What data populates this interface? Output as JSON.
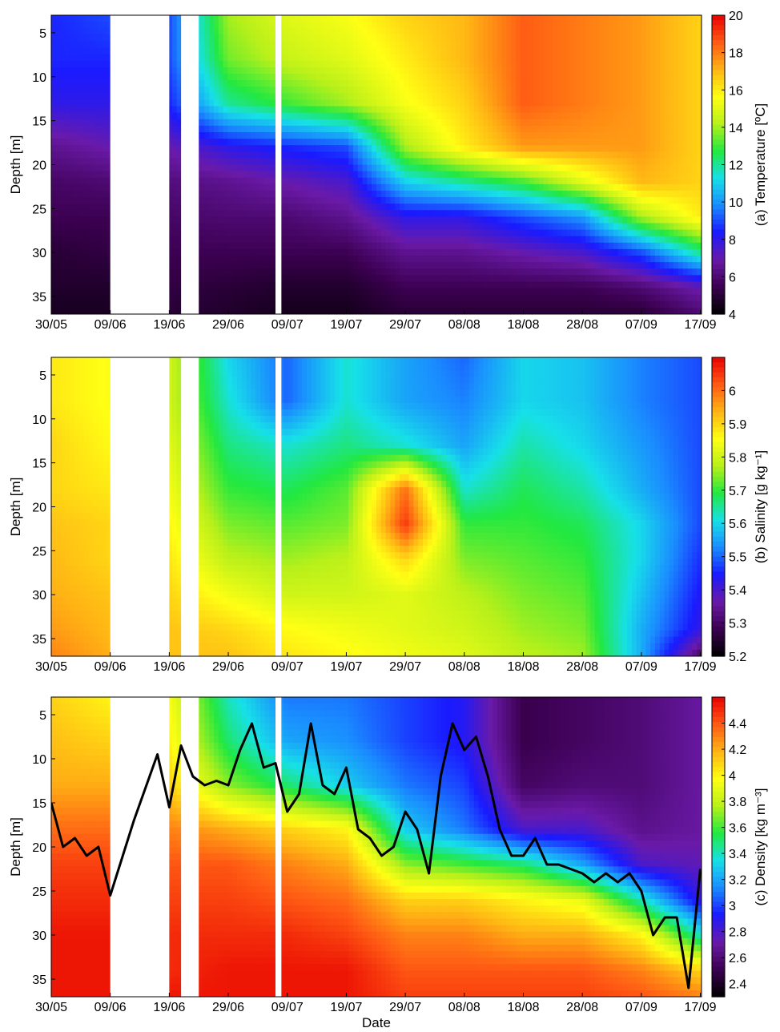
{
  "figure": {
    "xlabel": "Date"
  },
  "chart_data": [
    {
      "type": "heatmap",
      "variable": "temperature",
      "ylabel": "Depth [m]",
      "xlabel": "",
      "colorbar_label": "(a) Temperature [ºC]",
      "colorbar_ticks": [
        "4",
        "6",
        "8",
        "10",
        "12",
        "14",
        "16",
        "18",
        "20"
      ],
      "clim": [
        4,
        20
      ],
      "colormap": [
        "#000000",
        "#3b0050",
        "#6a1aa8",
        "#1a1aff",
        "#1a8cff",
        "#17e0e8",
        "#22e840",
        "#b8f01a",
        "#ffff14",
        "#ffb414",
        "#ff5a14",
        "#e80000"
      ],
      "x_ticks": [
        "30/05",
        "09/06",
        "19/06",
        "29/06",
        "09/07",
        "19/07",
        "29/07",
        "08/08",
        "18/08",
        "28/08",
        "07/09",
        "17/09"
      ],
      "y_ticks": [
        "5",
        "10",
        "15",
        "20",
        "25",
        "30",
        "35"
      ],
      "ylim": [
        3,
        37
      ],
      "y_reversed": true,
      "profile_depths": [
        3,
        8,
        13,
        18,
        22,
        26,
        30,
        34,
        37
      ],
      "profile_dates": [
        "30/05",
        "09/06",
        "19/06",
        "29/06",
        "09/07",
        "19/07",
        "29/07",
        "08/08",
        "18/08",
        "28/08",
        "07/09",
        "17/09"
      ],
      "profiles": [
        [
          8.5,
          8.5,
          8.0,
          6.5,
          5.8,
          5.5,
          5.0,
          4.8,
          4.6
        ],
        [
          9.0,
          8.5,
          8.0,
          7.0,
          6.0,
          5.5,
          5.2,
          4.8,
          4.6
        ],
        [
          9.0,
          9.0,
          8.5,
          7.0,
          6.2,
          5.8,
          5.5,
          5.2,
          5.0
        ],
        [
          14.0,
          13.5,
          12.0,
          8.0,
          6.5,
          6.0,
          5.5,
          5.0,
          4.8
        ],
        [
          15.0,
          14.5,
          13.0,
          8.5,
          7.0,
          6.0,
          5.5,
          4.8,
          4.5
        ],
        [
          15.5,
          15.0,
          14.0,
          9.0,
          7.5,
          6.5,
          5.5,
          4.8,
          4.5
        ],
        [
          16.5,
          16.0,
          15.5,
          14.0,
          11.0,
          8.0,
          6.5,
          5.5,
          5.0
        ],
        [
          17.0,
          17.0,
          16.5,
          16.0,
          12.0,
          8.0,
          6.5,
          5.5,
          5.0
        ],
        [
          18.5,
          18.5,
          18.5,
          17.5,
          13.0,
          9.0,
          7.0,
          5.5,
          5.0
        ],
        [
          18.0,
          18.0,
          18.0,
          17.5,
          15.0,
          10.0,
          7.5,
          5.5,
          5.0
        ],
        [
          17.5,
          17.5,
          17.5,
          17.5,
          17.0,
          14.0,
          9.0,
          6.0,
          5.0
        ],
        [
          16.5,
          16.5,
          16.5,
          16.5,
          16.5,
          16.0,
          12.0,
          7.0,
          6.0
        ]
      ],
      "data_gaps": [
        [
          "09/06",
          "19/06"
        ],
        [
          "21/06",
          "24/06"
        ],
        [
          "07/07",
          "08/07"
        ]
      ]
    },
    {
      "type": "heatmap",
      "variable": "salinity",
      "ylabel": "Depth [m]",
      "xlabel": "",
      "colorbar_label": "(b) Salinity [g kg⁻¹]",
      "colorbar_ticks": [
        "5.2",
        "5.3",
        "5.4",
        "5.5",
        "5.6",
        "5.7",
        "5.8",
        "5.9",
        "6"
      ],
      "clim": [
        5.2,
        6.1
      ],
      "colormap": [
        "#000000",
        "#3b0050",
        "#6a1aa8",
        "#1a1aff",
        "#1a8cff",
        "#17e0e8",
        "#22e840",
        "#b8f01a",
        "#ffff14",
        "#ffb414",
        "#ff5a14",
        "#e80000"
      ],
      "x_ticks": [
        "30/05",
        "09/06",
        "19/06",
        "29/06",
        "09/07",
        "19/07",
        "29/07",
        "08/08",
        "18/08",
        "28/08",
        "07/09",
        "17/09"
      ],
      "y_ticks": [
        "5",
        "10",
        "15",
        "20",
        "25",
        "30",
        "35"
      ],
      "ylim": [
        3,
        37
      ],
      "y_reversed": true,
      "profile_depths": [
        3,
        8,
        13,
        18,
        22,
        26,
        30,
        34,
        37
      ],
      "profile_dates": [
        "30/05",
        "09/06",
        "19/06",
        "29/06",
        "09/07",
        "19/07",
        "29/07",
        "08/08",
        "18/08",
        "28/08",
        "07/09",
        "17/09"
      ],
      "profiles": [
        [
          5.88,
          5.88,
          5.9,
          5.9,
          5.92,
          5.93,
          5.94,
          5.96,
          5.98
        ],
        [
          5.85,
          5.85,
          5.86,
          5.88,
          5.9,
          5.9,
          5.92,
          5.93,
          5.94
        ],
        [
          5.8,
          5.8,
          5.82,
          5.84,
          5.86,
          5.88,
          5.9,
          5.92,
          5.92
        ],
        [
          5.6,
          5.62,
          5.66,
          5.7,
          5.74,
          5.78,
          5.84,
          5.9,
          5.92
        ],
        [
          5.5,
          5.5,
          5.62,
          5.68,
          5.72,
          5.76,
          5.8,
          5.86,
          5.88
        ],
        [
          5.62,
          5.62,
          5.66,
          5.72,
          5.74,
          5.78,
          5.8,
          5.84,
          5.86
        ],
        [
          5.55,
          5.55,
          5.62,
          6.0,
          6.05,
          5.9,
          5.82,
          5.82,
          5.84
        ],
        [
          5.5,
          5.52,
          5.55,
          5.62,
          5.7,
          5.74,
          5.78,
          5.8,
          5.82
        ],
        [
          5.6,
          5.6,
          5.64,
          5.68,
          5.7,
          5.72,
          5.74,
          5.76,
          5.78
        ],
        [
          5.58,
          5.58,
          5.6,
          5.64,
          5.68,
          5.7,
          5.72,
          5.74,
          5.76
        ],
        [
          5.52,
          5.52,
          5.54,
          5.56,
          5.6,
          5.6,
          5.58,
          5.56,
          5.56
        ],
        [
          5.48,
          5.48,
          5.48,
          5.48,
          5.48,
          5.46,
          5.44,
          5.42,
          5.3
        ]
      ],
      "data_gaps": [
        [
          "09/06",
          "19/06"
        ],
        [
          "21/06",
          "24/06"
        ],
        [
          "07/07",
          "08/07"
        ]
      ]
    },
    {
      "type": "heatmap",
      "variable": "density",
      "ylabel": "Depth [m]",
      "xlabel": "Date",
      "colorbar_label": "(c) Density [kg m⁻³]",
      "colorbar_ticks": [
        "2.4",
        "2.6",
        "2.8",
        "3",
        "3.2",
        "3.4",
        "3.6",
        "3.8",
        "4",
        "4.2",
        "4.4"
      ],
      "clim": [
        2.3,
        4.6
      ],
      "colormap": [
        "#000000",
        "#3b0050",
        "#6a1aa8",
        "#1a1aff",
        "#1a8cff",
        "#17e0e8",
        "#22e840",
        "#b8f01a",
        "#ffff14",
        "#ffb414",
        "#ff5a14",
        "#e80000"
      ],
      "x_ticks": [
        "30/05",
        "09/06",
        "19/06",
        "29/06",
        "09/07",
        "19/07",
        "29/07",
        "08/08",
        "18/08",
        "28/08",
        "07/09",
        "17/09"
      ],
      "y_ticks": [
        "5",
        "10",
        "15",
        "20",
        "25",
        "30",
        "35"
      ],
      "ylim": [
        3,
        37
      ],
      "y_reversed": true,
      "profile_depths": [
        3,
        8,
        13,
        18,
        22,
        26,
        30,
        34,
        37
      ],
      "profile_dates": [
        "30/05",
        "09/06",
        "19/06",
        "29/06",
        "09/07",
        "19/07",
        "29/07",
        "08/08",
        "18/08",
        "28/08",
        "07/09",
        "17/09"
      ],
      "profiles": [
        [
          4.1,
          4.15,
          4.2,
          4.35,
          4.45,
          4.5,
          4.55,
          4.55,
          4.55
        ],
        [
          4.0,
          4.1,
          4.2,
          4.35,
          4.45,
          4.5,
          4.55,
          4.55,
          4.55
        ],
        [
          3.95,
          4.0,
          4.1,
          4.3,
          4.4,
          4.45,
          4.5,
          4.5,
          4.55
        ],
        [
          3.4,
          3.5,
          3.7,
          4.2,
          4.4,
          4.45,
          4.5,
          4.55,
          4.55
        ],
        [
          3.1,
          3.2,
          3.5,
          4.1,
          4.3,
          4.4,
          4.5,
          4.55,
          4.55
        ],
        [
          3.1,
          3.15,
          3.3,
          4.0,
          4.2,
          4.35,
          4.45,
          4.55,
          4.55
        ],
        [
          3.0,
          3.0,
          3.1,
          3.3,
          3.7,
          4.1,
          4.3,
          4.4,
          4.45
        ],
        [
          2.9,
          2.9,
          3.0,
          3.1,
          3.6,
          4.1,
          4.3,
          4.4,
          4.45
        ],
        [
          2.5,
          2.5,
          2.55,
          2.8,
          3.5,
          4.0,
          4.2,
          4.4,
          4.45
        ],
        [
          2.55,
          2.55,
          2.6,
          2.8,
          3.2,
          3.9,
          4.2,
          4.4,
          4.45
        ],
        [
          2.6,
          2.6,
          2.6,
          2.65,
          2.8,
          3.4,
          4.0,
          4.3,
          4.4
        ],
        [
          2.7,
          2.7,
          2.7,
          2.7,
          2.75,
          2.85,
          3.4,
          4.1,
          4.3
        ]
      ],
      "data_gaps": [
        [
          "09/06",
          "19/06"
        ],
        [
          "21/06",
          "24/06"
        ],
        [
          "07/07",
          "08/07"
        ]
      ],
      "mixed_layer_depth": {
        "style": "black line",
        "x": [
          "30/05",
          "01/06",
          "03/06",
          "05/06",
          "07/06",
          "09/06",
          "13/06",
          "17/06",
          "19/06",
          "21/06",
          "23/06",
          "25/06",
          "27/06",
          "29/06",
          "01/07",
          "03/07",
          "05/07",
          "07/07",
          "09/07",
          "11/07",
          "13/07",
          "15/07",
          "17/07",
          "19/07",
          "21/07",
          "23/07",
          "25/07",
          "27/07",
          "29/07",
          "31/07",
          "02/08",
          "04/08",
          "06/08",
          "08/08",
          "10/08",
          "12/08",
          "14/08",
          "16/08",
          "18/08",
          "20/08",
          "22/08",
          "24/08",
          "26/08",
          "28/08",
          "30/08",
          "01/09",
          "03/09",
          "05/09",
          "07/09",
          "09/09",
          "11/09",
          "13/09",
          "15/09",
          "17/09"
        ],
        "y": [
          15,
          20,
          19,
          21,
          20,
          25.5,
          17,
          9.5,
          15.5,
          8.5,
          12,
          13,
          12.5,
          13,
          9,
          6,
          11,
          10.5,
          16,
          14,
          6,
          13,
          14,
          11,
          18,
          19,
          21,
          20,
          16,
          18,
          23,
          12,
          6,
          9,
          7.5,
          12,
          18,
          21,
          21,
          19,
          22,
          22,
          22.5,
          23,
          24,
          23,
          24,
          23,
          25,
          30,
          28,
          28,
          36,
          22.5
        ]
      }
    }
  ]
}
